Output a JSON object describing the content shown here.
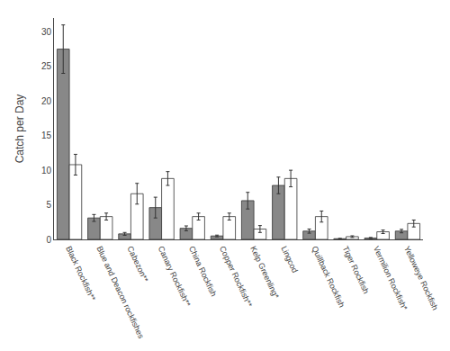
{
  "chart_data": {
    "type": "bar",
    "ylabel": "Catch per Day",
    "categories": [
      "Black Rockfish**",
      "Blue and Deacon rockfishes",
      "Cabezon**",
      "Canary Rockfish**",
      "China Rockfish",
      "Copper Rockfish**",
      "Kelp Greenling*",
      "Lingcod",
      "Quillback Rockfish",
      "Tiger Rockfish",
      "Vermilion Rockfish*",
      "Yelloweye Rockfish"
    ],
    "series": [
      {
        "color": "#888888",
        "values": [
          27.5,
          3.1,
          0.8,
          4.6,
          1.6,
          0.5,
          5.6,
          7.8,
          1.2,
          0.1,
          0.2,
          1.2
        ],
        "errors": [
          3.5,
          0.5,
          0.2,
          1.5,
          0.35,
          0.12,
          1.2,
          1.2,
          0.3,
          0.05,
          0.08,
          0.25
        ]
      },
      {
        "color": "#ffffff",
        "values": [
          10.8,
          3.3,
          6.6,
          8.8,
          3.3,
          3.3,
          1.5,
          8.8,
          3.3,
          0.4,
          1.1,
          2.3
        ],
        "errors": [
          1.5,
          0.5,
          1.5,
          1.0,
          0.5,
          0.5,
          0.5,
          1.2,
          0.8,
          0.12,
          0.25,
          0.5
        ]
      }
    ],
    "ylim": [
      0,
      32
    ],
    "yticks": [
      0,
      5,
      10,
      15,
      20,
      25,
      30
    ],
    "grid": false
  }
}
